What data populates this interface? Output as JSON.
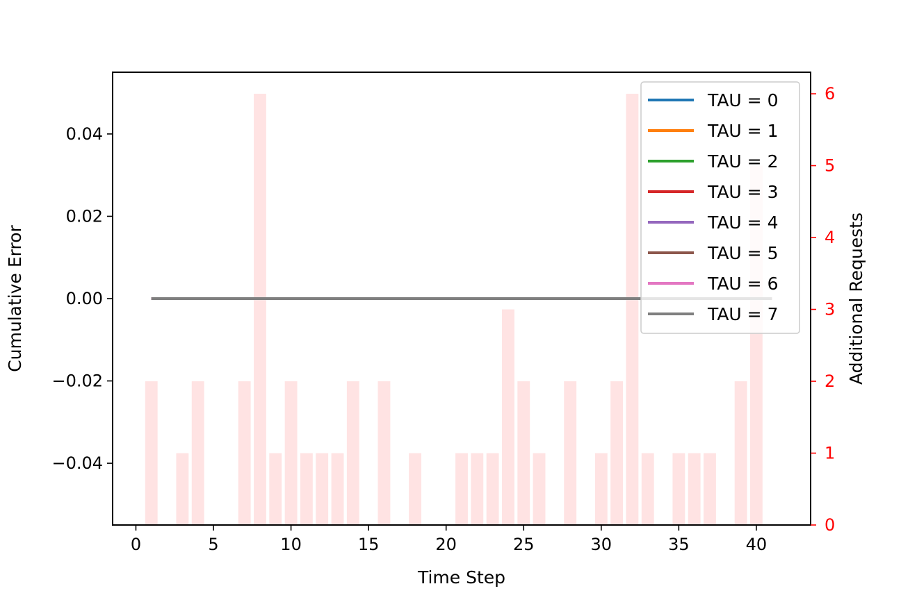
{
  "chart_data": {
    "type": "line+bar",
    "title": "",
    "xlabel": "Time Step",
    "ylabel_left": "Cumulative Error",
    "ylabel_right": "Additional Requests",
    "xlim": [
      -1.5,
      43.5
    ],
    "ylim_left": [
      -0.055,
      0.055
    ],
    "ylim_right": [
      0,
      6.3
    ],
    "x_ticks": [
      0,
      5,
      10,
      15,
      20,
      25,
      30,
      35,
      40
    ],
    "y_left_ticks": [
      -0.04,
      -0.02,
      0.0,
      0.02,
      0.04
    ],
    "y_left_tick_labels": [
      "−0.04",
      "−0.02",
      "0.00",
      "0.02",
      "0.04"
    ],
    "y_right_ticks": [
      0,
      1,
      2,
      3,
      4,
      5,
      6
    ],
    "grid": false,
    "legend_placement": "upper-right",
    "right_axis_color": "#ff0000",
    "bars": {
      "color": "#ffc8c8",
      "x": [
        1,
        3,
        4,
        7,
        8,
        9,
        10,
        11,
        12,
        13,
        14,
        16,
        18,
        21,
        22,
        23,
        24,
        25,
        26,
        28,
        30,
        31,
        32,
        33,
        35,
        36,
        37,
        39,
        40
      ],
      "values": [
        2,
        1,
        2,
        2,
        6,
        1,
        2,
        1,
        1,
        1,
        2,
        2,
        1,
        1,
        1,
        1,
        3,
        2,
        1,
        2,
        1,
        2,
        6,
        1,
        1,
        1,
        1,
        2,
        5
      ]
    },
    "series": [
      {
        "name": "TAU = 0",
        "color": "#1f77b4",
        "x_start": 1,
        "x_end": 41,
        "value": 0.0
      },
      {
        "name": "TAU = 1",
        "color": "#ff7f0e",
        "x_start": 1,
        "x_end": 41,
        "value": 0.0
      },
      {
        "name": "TAU = 2",
        "color": "#2ca02c",
        "x_start": 1,
        "x_end": 41,
        "value": 0.0
      },
      {
        "name": "TAU = 3",
        "color": "#d62728",
        "x_start": 1,
        "x_end": 41,
        "value": 0.0
      },
      {
        "name": "TAU = 4",
        "color": "#9467bd",
        "x_start": 1,
        "x_end": 41,
        "value": 0.0
      },
      {
        "name": "TAU = 5",
        "color": "#8c564b",
        "x_start": 1,
        "x_end": 41,
        "value": 0.0
      },
      {
        "name": "TAU = 6",
        "color": "#e377c2",
        "x_start": 1,
        "x_end": 41,
        "value": 0.0
      },
      {
        "name": "TAU = 7",
        "color": "#7f7f7f",
        "x_start": 1,
        "x_end": 41,
        "value": 0.0
      }
    ]
  }
}
